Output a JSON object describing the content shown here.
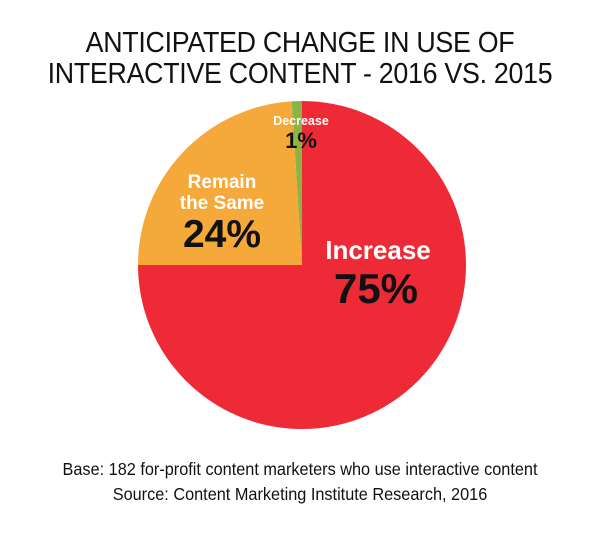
{
  "header": {
    "title_line1": "ANTICIPATED CHANGE IN USE OF",
    "title_line2": "INTERACTIVE CONTENT - 2016 VS. 2015"
  },
  "footer": {
    "base": "Base: 182 for-profit content marketers who use interactive content",
    "source": "Source: Content Marketing Institute Research, 2016"
  },
  "colors": {
    "increase": "#ee2a36",
    "remain": "#f5a93a",
    "decrease": "#8bb443"
  },
  "chart_data": {
    "type": "pie",
    "title": "ANTICIPATED CHANGE IN USE OF INTERACTIVE CONTENT - 2016 VS. 2015",
    "slices": [
      {
        "name": "Increase",
        "value": 75,
        "label": "Increase",
        "value_label": "75%"
      },
      {
        "name": "Remain the Same",
        "value": 24,
        "label_line1": "Remain",
        "label_line2": "the Same",
        "value_label": "24%"
      },
      {
        "name": "Decrease",
        "value": 1,
        "label": "Decrease",
        "value_label": "1%"
      }
    ]
  }
}
